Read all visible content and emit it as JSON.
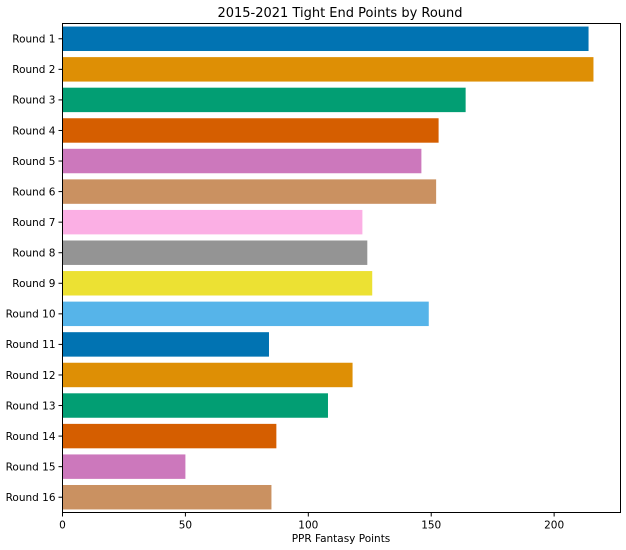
{
  "chart_data": {
    "type": "bar",
    "orientation": "horizontal",
    "title": "2015-2021 Tight End Points by Round",
    "xlabel": "PPR Fantasy Points",
    "ylabel": "",
    "xlim": [
      0,
      227
    ],
    "xticks": [
      0,
      50,
      100,
      150,
      200
    ],
    "categories": [
      "Round 1",
      "Round 2",
      "Round 3",
      "Round 4",
      "Round 5",
      "Round 6",
      "Round 7",
      "Round 8",
      "Round 9",
      "Round 10",
      "Round 11",
      "Round 12",
      "Round 13",
      "Round 14",
      "Round 15",
      "Round 16"
    ],
    "values": [
      214,
      216,
      164,
      153,
      146,
      152,
      122,
      124,
      126,
      149,
      84,
      118,
      108,
      87,
      50,
      85
    ],
    "colors": [
      "#0173b2",
      "#de8f05",
      "#029e73",
      "#d55e00",
      "#cc78bc",
      "#ca9161",
      "#fbafe4",
      "#949494",
      "#ece133",
      "#56b4e9",
      "#0173b2",
      "#de8f05",
      "#029e73",
      "#d55e00",
      "#cc78bc",
      "#ca9161"
    ],
    "grid": false,
    "legend": "none"
  }
}
